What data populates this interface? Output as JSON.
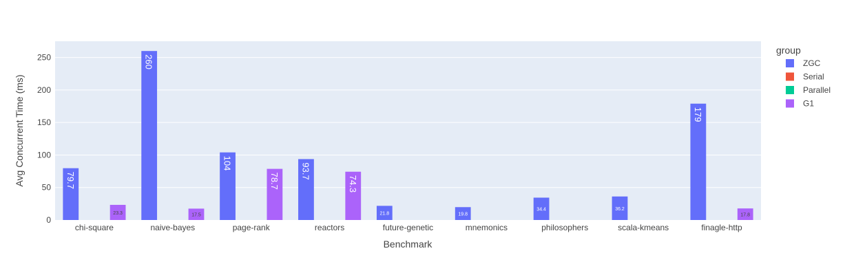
{
  "chart_data": {
    "type": "bar",
    "xlabel": "Benchmark",
    "ylabel": "Avg Concurrent Time (ms)",
    "legend_title": "group",
    "legend_position": "right",
    "grid": true,
    "ylim": [
      0,
      275
    ],
    "yticks": [
      0,
      50,
      100,
      150,
      200,
      250
    ],
    "categories": [
      "chi-square",
      "naive-bayes",
      "page-rank",
      "reactors",
      "future-genetic",
      "mnemonics",
      "philosophers",
      "scala-kmeans",
      "finagle-http"
    ],
    "series": [
      {
        "name": "ZGC",
        "color": "#636efa",
        "values": [
          79.7,
          260,
          104,
          93.7,
          21.8,
          19.8,
          34.4,
          36.2,
          179
        ],
        "labels": [
          "79.7",
          "260",
          "104",
          "93.7",
          "21.8",
          "19.8",
          "34.4",
          "36.2",
          "179"
        ]
      },
      {
        "name": "Serial",
        "color": "#ef553b",
        "values": [
          null,
          null,
          null,
          null,
          null,
          null,
          null,
          null,
          null
        ],
        "labels": []
      },
      {
        "name": "Parallel",
        "color": "#00cc96",
        "values": [
          null,
          null,
          null,
          null,
          null,
          null,
          null,
          null,
          null
        ],
        "labels": []
      },
      {
        "name": "G1",
        "color": "#ab63fa",
        "values": [
          23.3,
          17.5,
          78.7,
          74.3,
          null,
          null,
          null,
          null,
          17.8
        ],
        "labels": [
          "23.3",
          "17.5",
          "78.7",
          "74.3",
          "",
          "",
          "",
          "",
          "17.8"
        ]
      }
    ]
  },
  "colors": {
    "plot_bg": "#e5ecf6",
    "grid": "#ffffff"
  }
}
